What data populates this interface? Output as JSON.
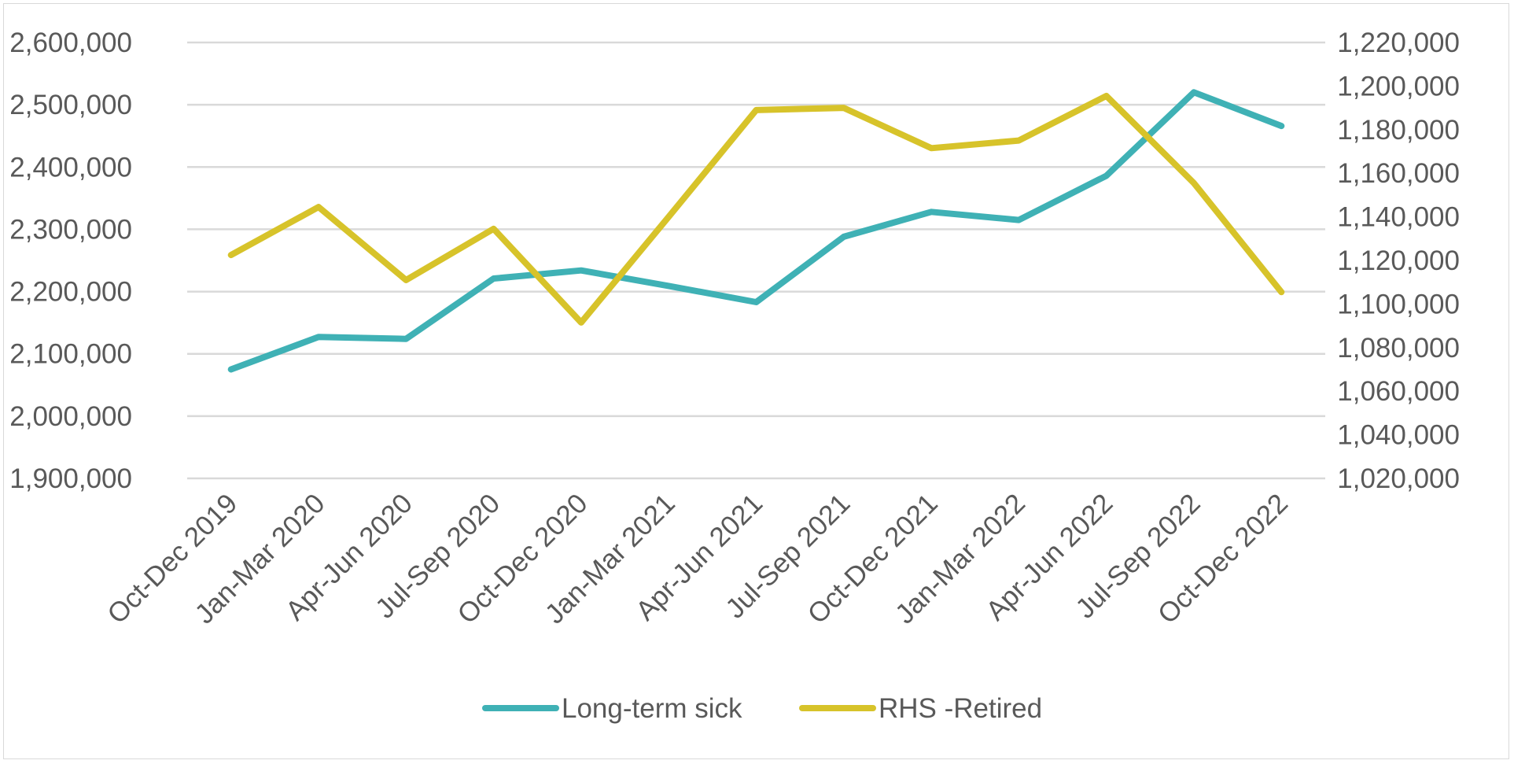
{
  "chart_data": {
    "type": "line",
    "categories": [
      "Oct-Dec 2019",
      "Jan-Mar 2020",
      "Apr-Jun 2020",
      "Jul-Sep 2020",
      "Oct-Dec 2020",
      "Jan-Mar 2021",
      "Apr-Jun 2021",
      "Jul-Sep 2021",
      "Oct-Dec 2021",
      "Jan-Mar 2022",
      "Apr-Jun 2022",
      "Jul-Sep 2022",
      "Oct-Dec 2022"
    ],
    "series": [
      {
        "name": "Long-term sick",
        "axis": "left",
        "color": "#3fb1b5",
        "values": [
          2075000,
          2127000,
          2124000,
          2221000,
          2234000,
          2209000,
          2183000,
          2288000,
          2328000,
          2315000,
          2386000,
          2520000,
          2466000
        ]
      },
      {
        "name": "RHS -Retired",
        "axis": "right",
        "color": "#d7c32a",
        "values": [
          1122500,
          1144500,
          1111000,
          1134500,
          1091500,
          1140000,
          1189000,
          1190000,
          1171500,
          1175000,
          1195500,
          1155500,
          1105500
        ]
      }
    ],
    "y_left": {
      "min": 1900000,
      "max": 2600000,
      "step": 100000,
      "tick_labels": [
        "1,900,000",
        "2,000,000",
        "2,100,000",
        "2,200,000",
        "2,300,000",
        "2,400,000",
        "2,500,000",
        "2,600,000"
      ]
    },
    "y_right": {
      "min": 1020000,
      "max": 1220000,
      "step": 20000,
      "tick_labels": [
        "1,020,000",
        "1,040,000",
        "1,060,000",
        "1,080,000",
        "1,100,000",
        "1,120,000",
        "1,140,000",
        "1,160,000",
        "1,180,000",
        "1,200,000",
        "1,220,000"
      ]
    },
    "title": "",
    "xlabel": "",
    "grid": true,
    "legend_position": "bottom"
  }
}
